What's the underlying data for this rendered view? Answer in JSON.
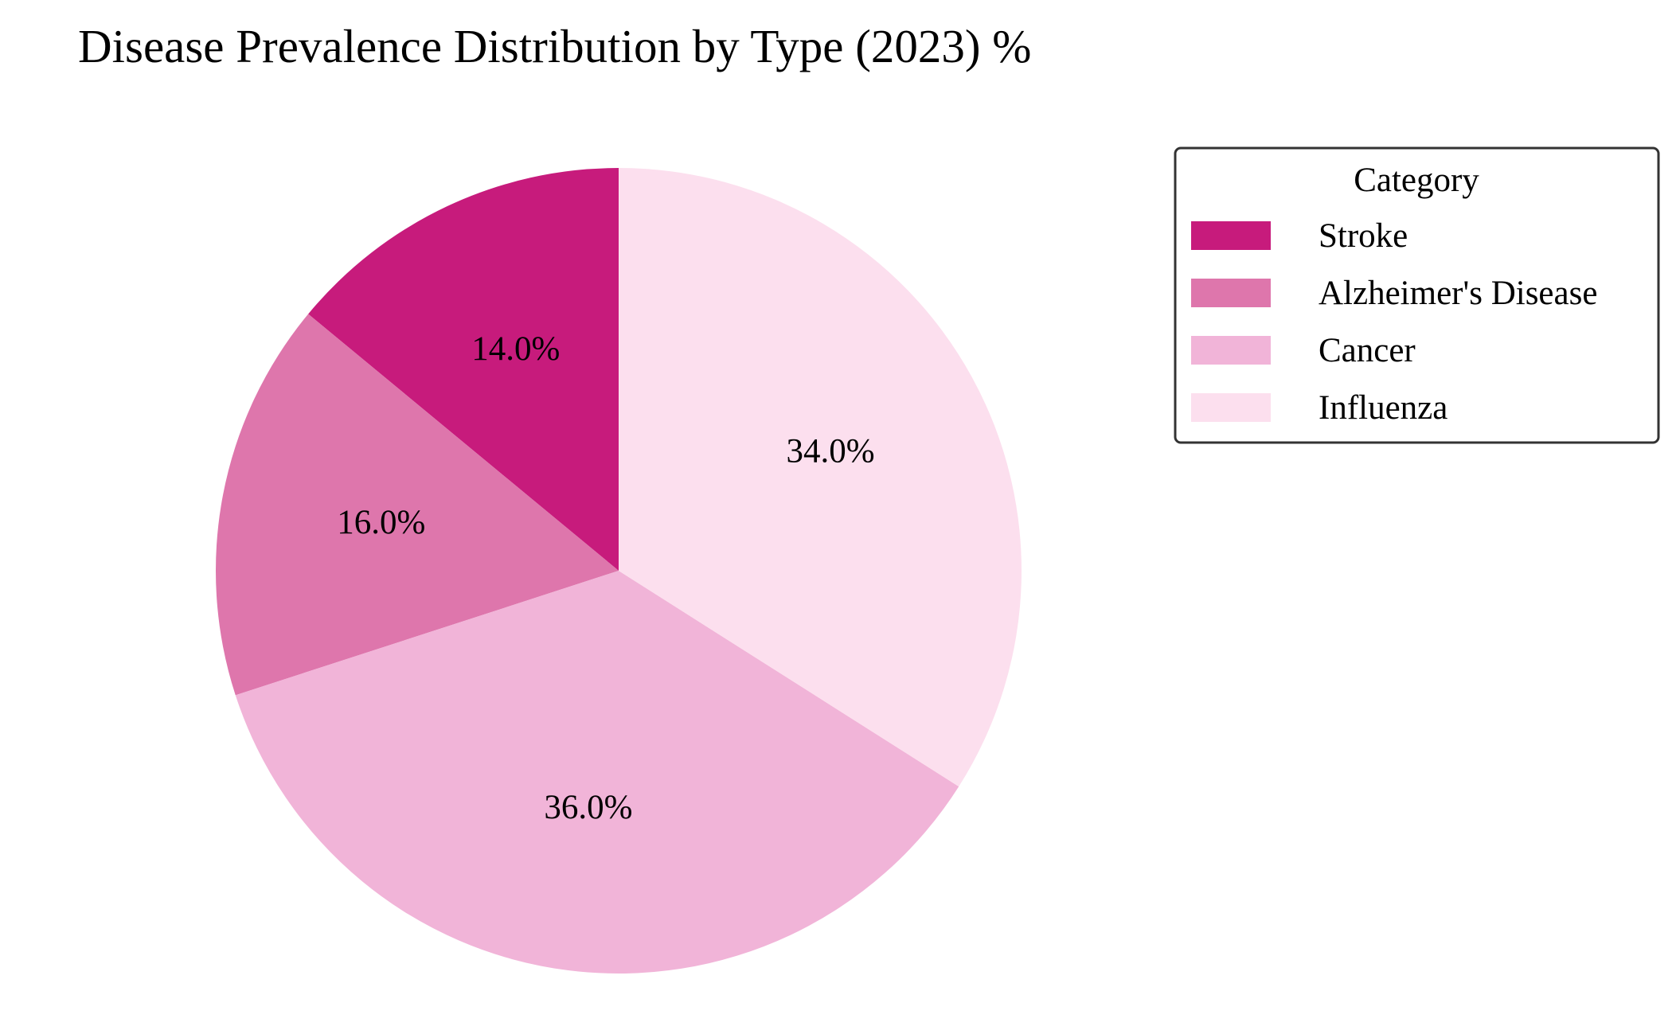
{
  "chart_data": {
    "type": "pie",
    "title": "Disease Prevalence Distribution by Type (2023) %",
    "categories": [
      "Stroke",
      "Alzheimer's Disease",
      "Cancer",
      "Influenza"
    ],
    "values": [
      14.0,
      16.0,
      36.0,
      34.0
    ],
    "value_labels": [
      "14.0%",
      "16.0%",
      "36.0%",
      "34.0%"
    ],
    "colors": [
      "#c71b7c",
      "#de76ac",
      "#f1b4d8",
      "#fcdfee"
    ],
    "start_angle_deg": 90,
    "direction": "counterclockwise",
    "legend": {
      "title": "Category",
      "placement": "upper-right"
    }
  }
}
